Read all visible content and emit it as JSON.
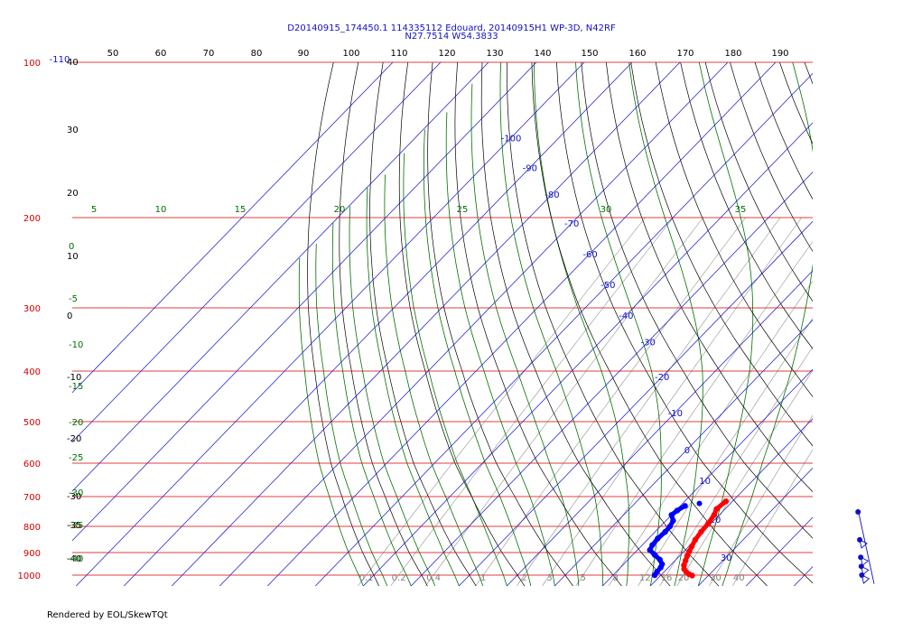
{
  "chart_data": {
    "type": "skew-t",
    "title_line1": "D20140915_174450.1 114335112 Edouard, 20140915H1 WP-3D, N42RF",
    "title_line2": "N27.7514 W54.3833",
    "pressure_levels": [
      {
        "label": "100",
        "p": 100
      },
      {
        "label": "200",
        "p": 200
      },
      {
        "label": "300",
        "p": 300
      },
      {
        "label": "400",
        "p": 400
      },
      {
        "label": "500",
        "p": 500
      },
      {
        "label": "600",
        "p": 600
      },
      {
        "label": "700",
        "p": 700
      },
      {
        "label": "800",
        "p": 800
      },
      {
        "label": "900",
        "p": 900
      },
      {
        "label": "1000",
        "p": 1000
      }
    ],
    "isotherms": [
      -110,
      -100,
      -90,
      -80,
      -70,
      -60,
      -50,
      -40,
      -30,
      -20,
      -10,
      0,
      10,
      20,
      30,
      40
    ],
    "isotherm_labels": [
      {
        "t": "-100",
        "p": 140
      },
      {
        "t": "-90",
        "p": 160
      },
      {
        "t": "-80",
        "p": 180
      },
      {
        "t": "-70",
        "p": 205
      },
      {
        "t": "-60",
        "p": 235
      },
      {
        "t": "-50",
        "p": 270
      },
      {
        "t": "-40",
        "p": 310
      },
      {
        "t": "-30",
        "p": 350
      },
      {
        "t": "-20",
        "p": 410
      },
      {
        "t": "-10",
        "p": 480
      },
      {
        "t": "0",
        "p": 565
      },
      {
        "t": "10",
        "p": 650
      },
      {
        "t": "20",
        "p": 775
      },
      {
        "t": "30",
        "p": 920
      }
    ],
    "theta_top_labels": [
      "50",
      "60",
      "70",
      "80",
      "90",
      "100",
      "110",
      "120",
      "130",
      "140",
      "150",
      "160",
      "170",
      "180",
      "190"
    ],
    "theta_left_labels": [
      "40",
      "30",
      "20",
      "10",
      "0",
      "-10",
      "-20",
      "-30",
      "-35",
      "-40"
    ],
    "theta_e_labels": [
      "5",
      "10",
      "15",
      "20",
      "25",
      "30",
      "35"
    ],
    "theta_e_left_labels": [
      "0",
      "-5",
      "-10",
      "-15",
      "-20",
      "-25",
      "-30",
      "-35",
      "-40"
    ],
    "mixing_ratio_labels": [
      "0.1",
      "0.2",
      "0.4",
      "1",
      "2",
      "3",
      "5",
      "8",
      "12",
      "16",
      "20",
      "30",
      "40"
    ],
    "top_left_label": "-110",
    "temperature_profile": [
      {
        "p": 715,
        "t": 18.6
      },
      {
        "p": 740,
        "t": 18.2
      },
      {
        "p": 760,
        "t": 18.9
      },
      {
        "p": 790,
        "t": 19.4
      },
      {
        "p": 820,
        "t": 19.6
      },
      {
        "p": 850,
        "t": 20.0
      },
      {
        "p": 875,
        "t": 20.6
      },
      {
        "p": 895,
        "t": 21.1
      },
      {
        "p": 915,
        "t": 21.6
      },
      {
        "p": 935,
        "t": 22.2
      },
      {
        "p": 955,
        "t": 22.8
      },
      {
        "p": 972,
        "t": 23.6
      },
      {
        "p": 985,
        "t": 24.6
      },
      {
        "p": 995,
        "t": 25.6
      },
      {
        "p": 1002,
        "t": 26.6
      }
    ],
    "dewpoint_profile": [
      {
        "p": 730,
        "t": 11.0
      },
      {
        "p": 745,
        "t": 10.3
      },
      {
        "p": 760,
        "t": 10.0
      },
      {
        "p": 780,
        "t": 11.5
      },
      {
        "p": 800,
        "t": 12.0
      },
      {
        "p": 820,
        "t": 12.1
      },
      {
        "p": 845,
        "t": 11.9
      },
      {
        "p": 870,
        "t": 12.1
      },
      {
        "p": 890,
        "t": 12.6
      },
      {
        "p": 910,
        "t": 14.6
      },
      {
        "p": 930,
        "t": 16.6
      },
      {
        "p": 950,
        "t": 18.0
      },
      {
        "p": 965,
        "t": 18.4
      },
      {
        "p": 985,
        "t": 18.5
      },
      {
        "p": 1000,
        "t": 18.7
      }
    ],
    "wind_barbs_pressures": [
      750,
      850,
      920,
      960,
      1000
    ],
    "colors": {
      "isobar": "#d00000",
      "isotherm": "#1010c8",
      "dry_adiabat": "#000000",
      "moist_adiabat": "#007000",
      "mixing_ratio": "#909090",
      "temperature": "#ff0000",
      "dewpoint": "#0000ff",
      "title": "#1010c8"
    },
    "footer": "Rendered by EOL/SkewTQt"
  }
}
